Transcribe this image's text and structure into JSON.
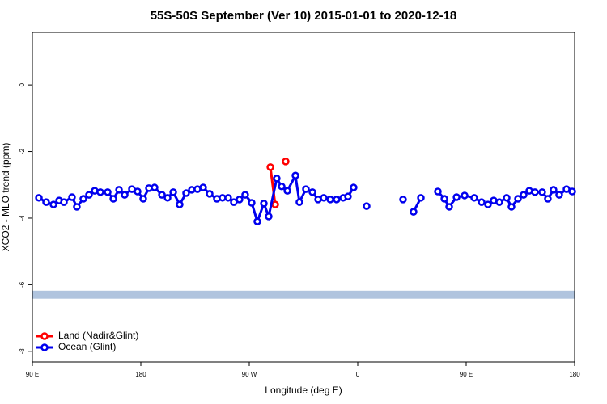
{
  "chart_data": {
    "type": "line",
    "title": "55S-50S September (Ver 10)   2015-01-01 to 2020-12-18",
    "xlabel": "Longitude (deg E)",
    "ylabel": "XCO2 - MLO trend (ppm)",
    "xlim": [
      90,
      540
    ],
    "ylim": [
      -8.32,
      1.58
    ],
    "xticks": [
      {
        "value": 90,
        "label": "90 E"
      },
      180,
      {
        "value": 270,
        "label": "90 W"
      },
      {
        "value": 360,
        "label": "0"
      },
      {
        "value": 450,
        "label": "90 E"
      },
      {
        "value": 540,
        "label": "180"
      }
    ],
    "yticks": [
      0,
      -2,
      -4,
      -6,
      -8
    ],
    "legend": "bottomleft",
    "band": {
      "range": [
        -6.18,
        -6.42
      ],
      "color": "#b0c4de"
    },
    "series": [
      {
        "name": "Land (Nadir&Glint)",
        "color": "#ff0000",
        "x": [
          287.5,
          291.5,
          296,
          300.2
        ],
        "values": [
          -2.47,
          -3.59,
          null,
          -2.3
        ]
      },
      {
        "name": "Ocean (Glint)",
        "color": "#0000ee",
        "x": [
          95.4,
          101.4,
          107.5,
          112.2,
          116.2,
          122.9,
          126.9,
          132.3,
          137.0,
          141.7,
          146.4,
          152.5,
          157.2,
          161.9,
          166.6,
          172.6,
          177.3,
          182.0,
          186.7,
          191.4,
          197.5,
          202.2,
          206.9,
          212.2,
          217.6,
          222.3,
          227.0,
          231.7,
          237.1,
          243.1,
          247.8,
          252.5,
          257.2,
          261.9,
          266.6,
          272.0,
          276.7,
          282.1,
          286.1,
          292.8,
          296.9,
          301.6,
          308.3,
          311.6,
          317.0,
          322.4,
          327.1,
          331.8,
          337.2,
          342.5,
          347.9,
          351.9,
          356.6,
          362,
          367.4,
          382,
          397.6,
          402,
          406.3,
          412.4,
          420,
          426.5,
          431.9,
          435.9,
          442.0,
          448.7,
          456.7,
          462.8,
          468.1,
          472.8,
          477.5,
          483.6,
          487.6,
          493.0,
          497.7,
          502.4,
          507.1,
          513.1,
          517.8,
          522.5,
          527.2,
          533.3,
          538.0
        ],
        "values": [
          -3.39,
          -3.52,
          -3.59,
          -3.47,
          -3.52,
          -3.37,
          -3.66,
          -3.42,
          -3.3,
          -3.18,
          -3.22,
          -3.22,
          -3.42,
          -3.15,
          -3.3,
          -3.13,
          -3.2,
          -3.42,
          -3.1,
          -3.08,
          -3.3,
          -3.39,
          -3.22,
          -3.59,
          -3.25,
          -3.15,
          -3.13,
          -3.08,
          -3.27,
          -3.42,
          -3.39,
          -3.39,
          -3.52,
          -3.44,
          -3.3,
          -3.54,
          -4.1,
          -3.56,
          -3.95,
          -2.81,
          -3.05,
          -3.18,
          -2.72,
          -3.52,
          -3.13,
          -3.22,
          -3.44,
          -3.39,
          -3.44,
          -3.44,
          -3.39,
          -3.35,
          -3.08,
          null,
          -3.64,
          null,
          -3.44,
          null,
          -3.81,
          -3.39,
          null,
          -3.2,
          -3.42,
          -3.66,
          -3.37,
          -3.32,
          -3.39,
          -3.52,
          -3.59,
          -3.47,
          -3.52,
          -3.39,
          -3.66,
          -3.42,
          -3.3,
          -3.18,
          -3.22,
          -3.22,
          -3.42,
          -3.15,
          -3.3,
          -3.13,
          -3.2
        ]
      }
    ]
  }
}
